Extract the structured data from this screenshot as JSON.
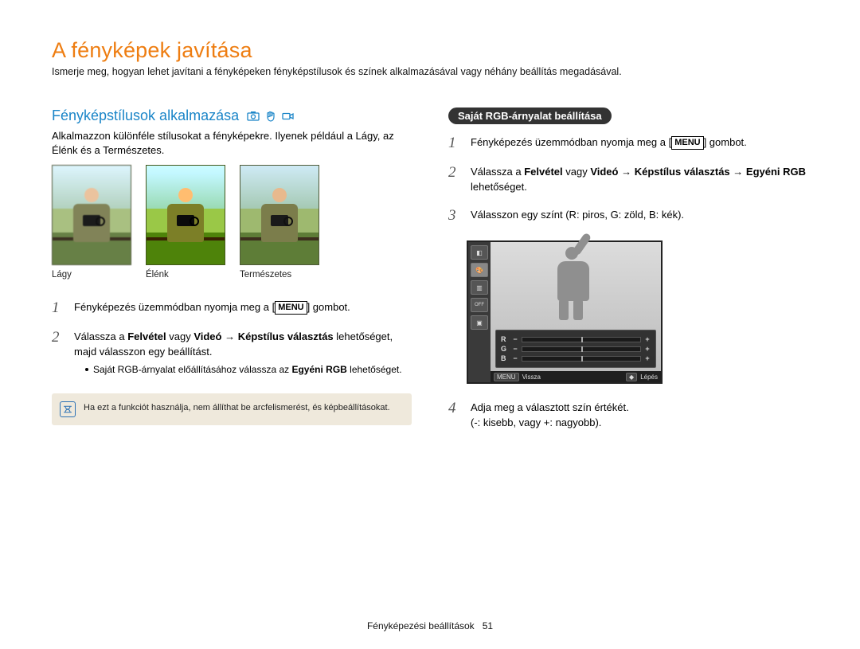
{
  "title": "A fényképek javítása",
  "intro": "Ismerje meg, hogyan lehet javítani a fényképeken fényképstílusok és színek alkalmazásával vagy néhány beállítás megadásával.",
  "left": {
    "heading": "Fényképstílusok alkalmazása",
    "sub": "Alkalmazzon különféle stílusokat a fényképekre. Ilyenek például a Lágy, az Élénk és a Természetes.",
    "thumbs": [
      {
        "label": "Lágy",
        "filter": "thumb-soft"
      },
      {
        "label": "Élénk",
        "filter": "thumb-vivid"
      },
      {
        "label": "Természetes",
        "filter": "thumb-nat"
      }
    ],
    "steps": [
      {
        "num": "1",
        "parts": [
          "Fényképezés üzemmódban nyomja meg a [",
          {
            "badge": "MENU"
          },
          "] gombot."
        ]
      },
      {
        "num": "2",
        "parts": [
          "Válassza a ",
          {
            "b": "Felvétel"
          },
          " vagy ",
          {
            "b": "Videó"
          },
          " → ",
          {
            "b": "Képstílus választás"
          },
          " lehetőséget, majd válasszon egy beállítást."
        ],
        "bullets": [
          {
            "parts": [
              "Saját RGB-árnyalat előállításához válassza az ",
              {
                "b": "Egyéni RGB"
              },
              " lehetőséget."
            ]
          }
        ]
      }
    ],
    "note": "Ha ezt a funkciót használja, nem állíthat be arcfelismerést, és képbeállításokat."
  },
  "right": {
    "pill": "Saját RGB-árnyalat beállítása",
    "steps": [
      {
        "num": "1",
        "parts": [
          "Fényképezés üzemmódban nyomja meg a [",
          {
            "badge": "MENU"
          },
          "] gombot."
        ]
      },
      {
        "num": "2",
        "parts": [
          "Válassza a ",
          {
            "b": "Felvétel"
          },
          " vagy ",
          {
            "b": "Videó"
          },
          " → ",
          {
            "b": "Képstílus választás"
          },
          " → ",
          {
            "b": "Egyéni RGB"
          },
          " lehetőséget."
        ]
      },
      {
        "num": "3",
        "parts": [
          "Válasszon egy színt (R: piros, G: zöld, B: kék)."
        ]
      },
      {
        "num": "4",
        "parts": [
          "Adja meg a választott szín értékét.",
          {
            "br": true
          },
          "(-: kisebb, vagy +: nagyobb)."
        ]
      }
    ],
    "lcd": {
      "channels": [
        "R",
        "G",
        "B"
      ],
      "footer": {
        "menu": "MENU",
        "back": "Vissza",
        "move": "Lépés",
        "nav": "◆"
      }
    }
  },
  "footer": {
    "section": "Fényképezési beállítások",
    "page": "51"
  },
  "colors": {
    "accent_orange": "#ee7d11",
    "accent_blue": "#1a85c8",
    "note_bg": "#efe9dc",
    "note_border": "#2d72b5",
    "pill_bg": "#333333"
  }
}
